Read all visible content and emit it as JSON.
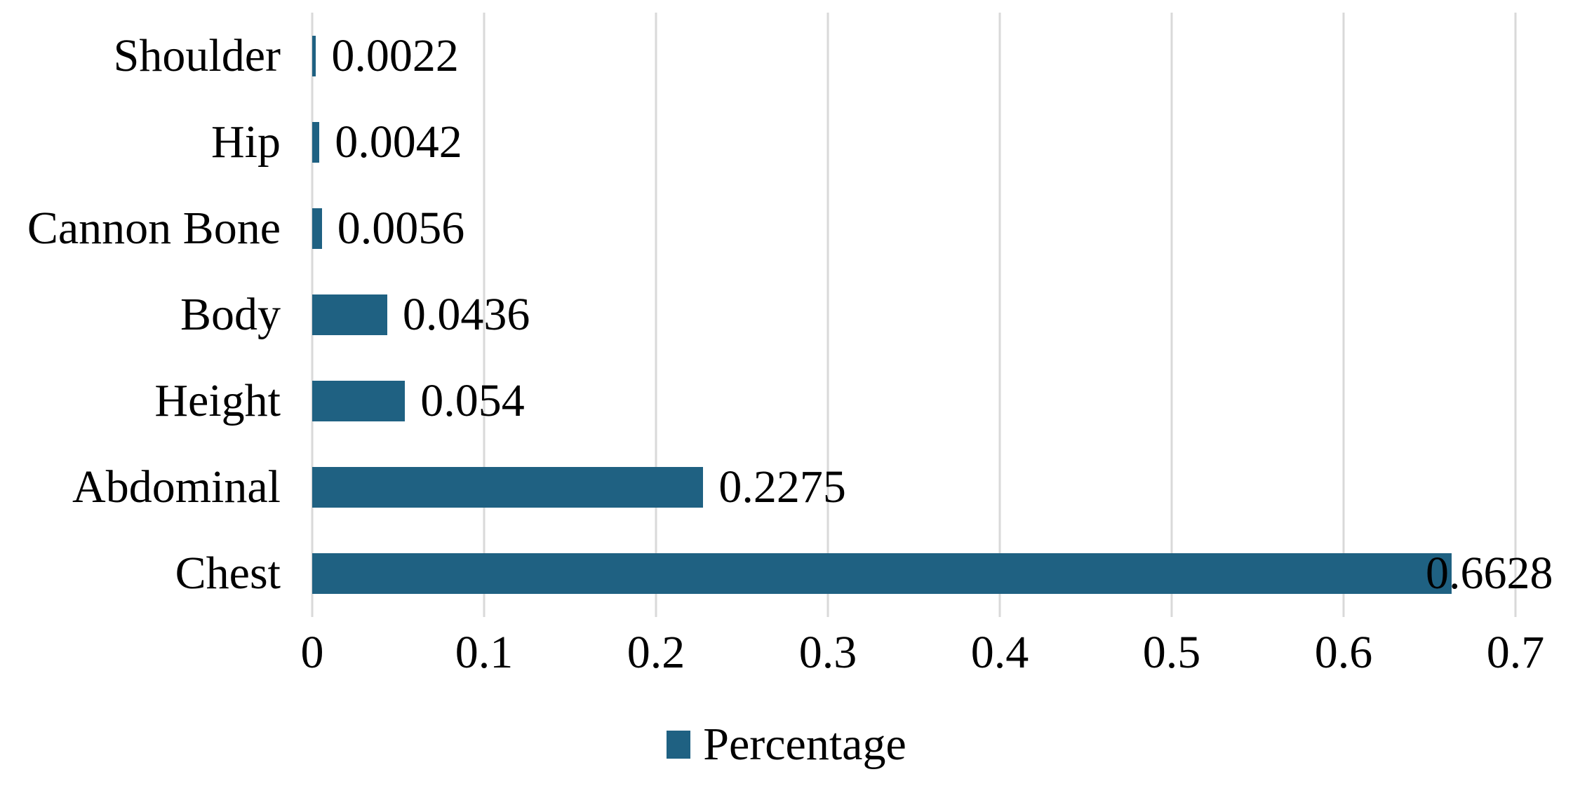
{
  "chart_data": {
    "type": "bar",
    "orientation": "horizontal",
    "title": "",
    "xlabel": "",
    "ylabel": "",
    "categories": [
      "Shoulder",
      "Hip",
      "Cannon Bone",
      "Body",
      "Height",
      "Abdominal",
      "Chest"
    ],
    "series": [
      {
        "name": "Percentage",
        "values": [
          0.0022,
          0.0042,
          0.0056,
          0.0436,
          0.054,
          0.2275,
          0.6628
        ],
        "value_labels": [
          "0.0022",
          "0.0042",
          "0.0056",
          "0.0436",
          "0.054",
          "0.2275",
          "0.6628"
        ]
      }
    ],
    "xlim": [
      0,
      0.7
    ],
    "x_ticks": [
      {
        "value": 0,
        "label": "0"
      },
      {
        "value": 0.1,
        "label": "0.1"
      },
      {
        "value": 0.2,
        "label": "0.2"
      },
      {
        "value": 0.3,
        "label": "0.3"
      },
      {
        "value": 0.4,
        "label": "0.4"
      },
      {
        "value": 0.5,
        "label": "0.5"
      },
      {
        "value": 0.6,
        "label": "0.6"
      },
      {
        "value": 0.7,
        "label": "0.7"
      }
    ],
    "grid": true,
    "legend": {
      "position": "bottom",
      "label": "Percentage"
    },
    "colors": {
      "bar": "#1F6182",
      "gridline": "#d9d9d9",
      "text": "#000000",
      "background": "#ffffff"
    }
  }
}
